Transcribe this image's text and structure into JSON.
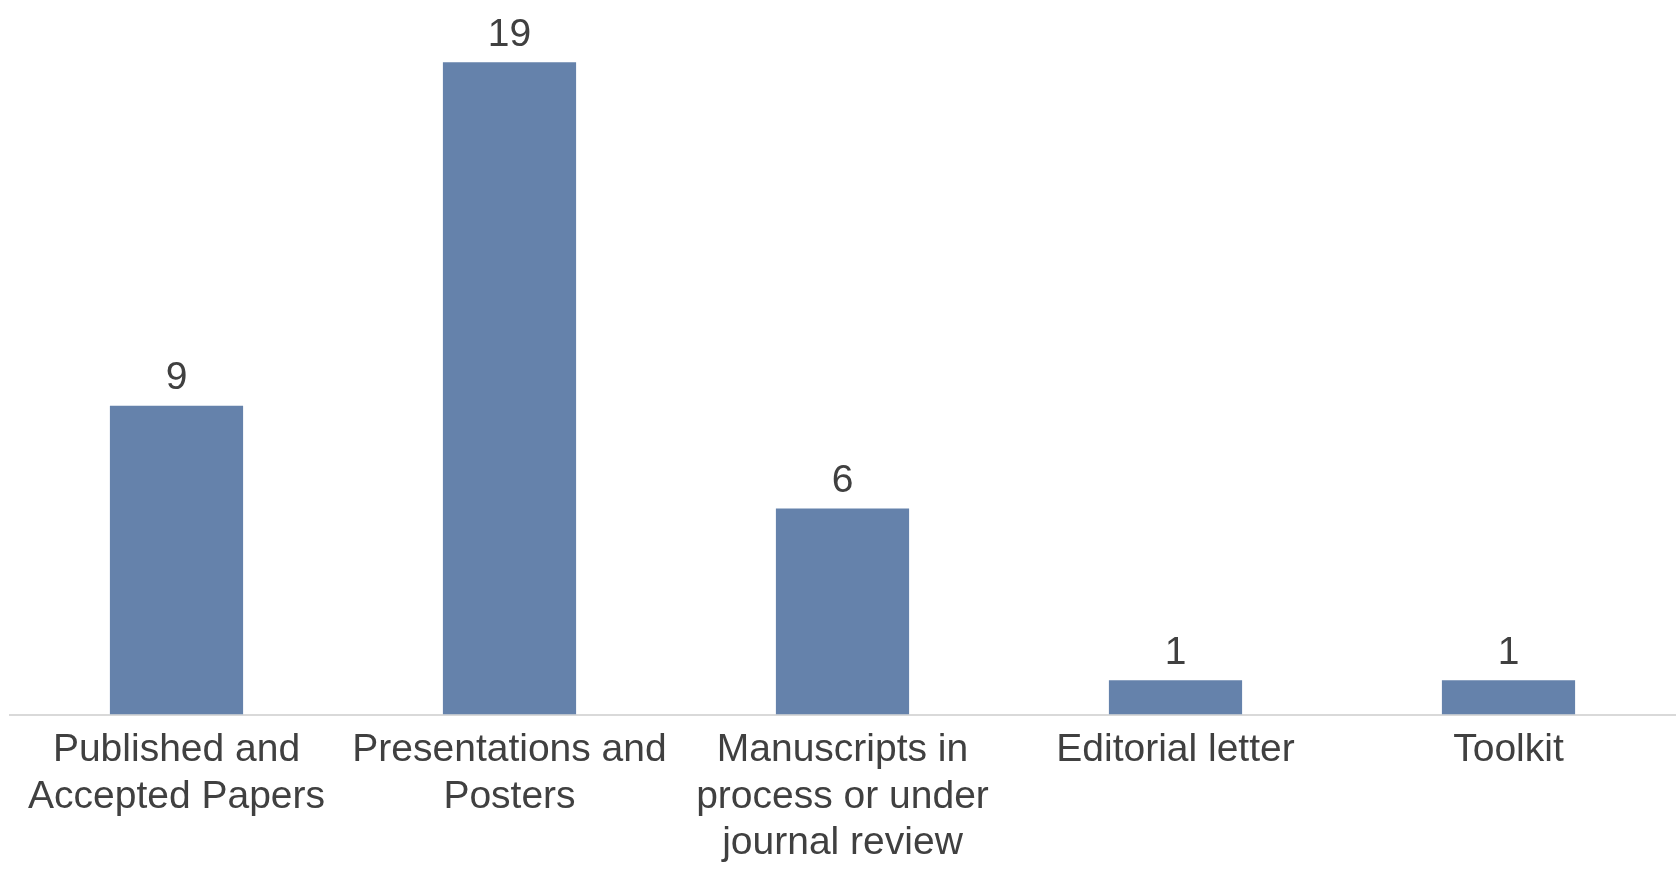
{
  "chart_data": {
    "type": "bar",
    "categories": [
      "Published and Accepted Papers",
      "Presentations and Posters",
      "Manuscripts in process or under journal review",
      "Editorial letter",
      "Toolkit"
    ],
    "values": [
      9,
      19,
      6,
      1,
      1
    ],
    "color": "#6582ab",
    "data_labels": true,
    "grid": false,
    "legend": false
  }
}
